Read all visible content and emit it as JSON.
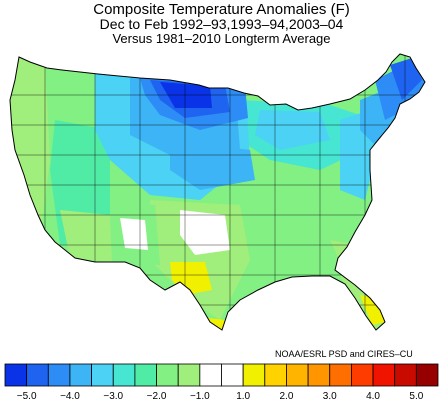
{
  "titles": {
    "line1": "Composite Temperature Anomalies (F)",
    "line2": "Dec to Feb  1992–93,1993–94,2003–04",
    "line3": "Versus 1981–2010 Longterm Average"
  },
  "credit": "NOAA/ESRL PSD and CIRES–CU",
  "map": {
    "type": "choropleth",
    "subject": "Contiguous United States climate divisions",
    "units": "F"
  },
  "colorbar": {
    "colors": [
      "#0a32e6",
      "#1e64f0",
      "#2d8cf5",
      "#3cb4f5",
      "#4bd2f5",
      "#46e6d2",
      "#50eba5",
      "#82f082",
      "#a0ee7c",
      "#ffffff",
      "#ffffff",
      "#f0f000",
      "#ffd200",
      "#ffb400",
      "#ff9600",
      "#ff6e00",
      "#ff3c00",
      "#f01400",
      "#c80a00",
      "#960000"
    ],
    "ticks": [
      "−5.0",
      "−4.0",
      "−3.0",
      "−2.0",
      "−1.0",
      "1.0",
      "2.0",
      "3.0",
      "4.0",
      "5.0"
    ]
  }
}
